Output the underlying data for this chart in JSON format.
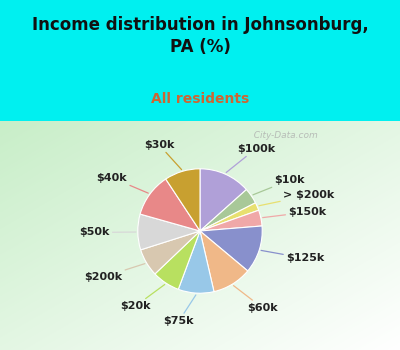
{
  "title": "Income distribution in Johnsonburg,\nPA (%)",
  "subtitle": "All residents",
  "bg_cyan": "#00f0f0",
  "watermark": "  City-Data.com",
  "labels": [
    "$100k",
    "$10k",
    "> $200k",
    "$150k",
    "$125k",
    "$60k",
    "$75k",
    "$20k",
    "$200k",
    "$50k",
    "$40k",
    "$30k"
  ],
  "values": [
    13,
    4,
    2,
    4,
    12,
    10,
    9,
    7,
    7,
    9,
    11,
    9
  ],
  "colors": [
    "#b0a0d8",
    "#a8c898",
    "#e8e070",
    "#f0a8a8",
    "#8890cc",
    "#f0b888",
    "#98c8e8",
    "#b8e060",
    "#d8c8b0",
    "#d8d8d8",
    "#e88888",
    "#c8a030"
  ],
  "title_fontsize": 12,
  "subtitle_fontsize": 10,
  "label_fontsize": 8,
  "title_color": "#111111",
  "subtitle_color": "#cc6633"
}
